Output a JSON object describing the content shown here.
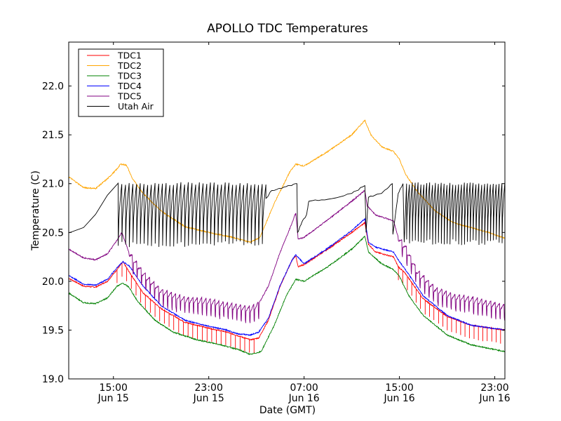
{
  "chart_data": {
    "type": "line",
    "title": "APOLLO TDC Temperatures",
    "xlabel": "Date (GMT)",
    "ylabel": "Temperature (C)",
    "x_units": "hours since Jun 15 00:00 GMT",
    "xlim": [
      11.25,
      47.85
    ],
    "ylim": [
      19.0,
      22.45
    ],
    "grid": false,
    "legend_position": "top-left",
    "yticks": [
      {
        "value": 19.0,
        "label": "19.0"
      },
      {
        "value": 19.5,
        "label": "19.5"
      },
      {
        "value": 20.0,
        "label": "20.0"
      },
      {
        "value": 20.5,
        "label": "20.5"
      },
      {
        "value": 21.0,
        "label": "21.0"
      },
      {
        "value": 21.5,
        "label": "21.5"
      },
      {
        "value": 22.0,
        "label": "22.0"
      }
    ],
    "xticks": [
      {
        "value": 15,
        "time": "15:00",
        "date": "Jun 15"
      },
      {
        "value": 23,
        "time": "23:00",
        "date": "Jun 15"
      },
      {
        "value": 31,
        "time": "07:00",
        "date": "Jun 16"
      },
      {
        "value": 39,
        "time": "15:00",
        "date": "Jun 16"
      },
      {
        "value": 47,
        "time": "23:00",
        "date": "Jun 16"
      }
    ],
    "series": [
      {
        "name": "TDC1",
        "color": "#ff0000",
        "points": [
          [
            11.25,
            20.03
          ],
          [
            12.5,
            19.95
          ],
          [
            13.5,
            19.94
          ],
          [
            14.5,
            20.0
          ],
          [
            15.3,
            20.12
          ],
          [
            15.8,
            20.2
          ],
          [
            16.3,
            20.1
          ],
          [
            17.5,
            19.88
          ],
          [
            19,
            19.72
          ],
          [
            21,
            19.58
          ],
          [
            23,
            19.52
          ],
          [
            24.5,
            19.48
          ],
          [
            25.5,
            19.44
          ],
          [
            26.5,
            19.4
          ],
          [
            27.2,
            19.42
          ],
          [
            28,
            19.6
          ],
          [
            29,
            19.95
          ],
          [
            30,
            20.22
          ],
          [
            30.3,
            20.26
          ],
          [
            30.5,
            20.15
          ],
          [
            31,
            20.17
          ],
          [
            33,
            20.33
          ],
          [
            35,
            20.5
          ],
          [
            36.1,
            20.6
          ],
          [
            36.4,
            20.38
          ],
          [
            37,
            20.3
          ],
          [
            38.5,
            20.25
          ],
          [
            38.9,
            20.15
          ],
          [
            39.5,
            20.08
          ],
          [
            41,
            19.82
          ],
          [
            43,
            19.64
          ],
          [
            45,
            19.55
          ],
          [
            47.85,
            19.5
          ]
        ],
        "spikes": {
          "start": 15.3,
          "end": 27.2,
          "count": 30,
          "depth": 0.14
        },
        "spikes2": {
          "start": 38.9,
          "end": 47.85,
          "count": 24,
          "depth": 0.14
        }
      },
      {
        "name": "TDC2",
        "color": "#ffa500",
        "points": [
          [
            11.25,
            21.07
          ],
          [
            12.5,
            20.96
          ],
          [
            13.5,
            20.95
          ],
          [
            14.5,
            21.05
          ],
          [
            15.3,
            21.15
          ],
          [
            15.6,
            21.2
          ],
          [
            16.1,
            21.19
          ],
          [
            16.6,
            21.05
          ],
          [
            17.5,
            20.9
          ],
          [
            19,
            20.72
          ],
          [
            21,
            20.56
          ],
          [
            23,
            20.5
          ],
          [
            25,
            20.45
          ],
          [
            26.5,
            20.4
          ],
          [
            27.3,
            20.45
          ],
          [
            28.5,
            20.8
          ],
          [
            29.8,
            21.12
          ],
          [
            30.3,
            21.2
          ],
          [
            31,
            21.18
          ],
          [
            33,
            21.33
          ],
          [
            35,
            21.5
          ],
          [
            36.1,
            21.65
          ],
          [
            36.6,
            21.5
          ],
          [
            37.5,
            21.38
          ],
          [
            38.5,
            21.33
          ],
          [
            39,
            21.25
          ],
          [
            39.5,
            21.1
          ],
          [
            40.5,
            20.92
          ],
          [
            42,
            20.72
          ],
          [
            43.5,
            20.6
          ],
          [
            45,
            20.55
          ],
          [
            46.5,
            20.5
          ],
          [
            47.85,
            20.44
          ]
        ]
      },
      {
        "name": "TDC3",
        "color": "#008000",
        "points": [
          [
            11.25,
            19.88
          ],
          [
            12.5,
            19.78
          ],
          [
            13.5,
            19.77
          ],
          [
            14.5,
            19.83
          ],
          [
            15.3,
            19.95
          ],
          [
            15.8,
            19.98
          ],
          [
            16.3,
            19.94
          ],
          [
            17,
            19.8
          ],
          [
            18.5,
            19.6
          ],
          [
            20,
            19.48
          ],
          [
            22,
            19.4
          ],
          [
            24,
            19.35
          ],
          [
            25.5,
            19.3
          ],
          [
            26.5,
            19.25
          ],
          [
            27.4,
            19.28
          ],
          [
            28.5,
            19.55
          ],
          [
            29.5,
            19.85
          ],
          [
            30.3,
            20.02
          ],
          [
            31,
            20.0
          ],
          [
            33,
            20.15
          ],
          [
            35,
            20.33
          ],
          [
            36.1,
            20.46
          ],
          [
            36.4,
            20.3
          ],
          [
            37.5,
            20.18
          ],
          [
            38.5,
            20.12
          ],
          [
            39,
            20.05
          ],
          [
            39.8,
            19.85
          ],
          [
            41,
            19.65
          ],
          [
            43,
            19.45
          ],
          [
            45,
            19.35
          ],
          [
            47.85,
            19.28
          ]
        ]
      },
      {
        "name": "TDC4",
        "color": "#0000ff",
        "points": [
          [
            11.25,
            20.06
          ],
          [
            12.5,
            19.97
          ],
          [
            13.5,
            19.96
          ],
          [
            14.5,
            20.02
          ],
          [
            15.3,
            20.14
          ],
          [
            15.8,
            20.2
          ],
          [
            16.3,
            20.16
          ],
          [
            17.5,
            19.95
          ],
          [
            19,
            19.75
          ],
          [
            21,
            19.6
          ],
          [
            23,
            19.54
          ],
          [
            24.5,
            19.5
          ],
          [
            25.5,
            19.46
          ],
          [
            26.5,
            19.45
          ],
          [
            27.2,
            19.48
          ],
          [
            28,
            19.62
          ],
          [
            29,
            19.96
          ],
          [
            30,
            20.22
          ],
          [
            30.3,
            20.27
          ],
          [
            31,
            20.18
          ],
          [
            33,
            20.34
          ],
          [
            35,
            20.52
          ],
          [
            36.1,
            20.64
          ],
          [
            36.4,
            20.4
          ],
          [
            37,
            20.35
          ],
          [
            38.5,
            20.3
          ],
          [
            38.9,
            20.22
          ],
          [
            39.5,
            20.12
          ],
          [
            41,
            19.85
          ],
          [
            43,
            19.65
          ],
          [
            45,
            19.55
          ],
          [
            47.85,
            19.5
          ]
        ]
      },
      {
        "name": "TDC5",
        "color": "#800080",
        "points": [
          [
            11.25,
            20.33
          ],
          [
            12.5,
            20.24
          ],
          [
            13.5,
            20.22
          ],
          [
            14.5,
            20.28
          ],
          [
            15.3,
            20.42
          ],
          [
            15.7,
            20.5
          ],
          [
            16.3,
            20.3
          ],
          [
            17.5,
            20.08
          ],
          [
            19,
            19.9
          ],
          [
            21,
            19.82
          ],
          [
            23,
            19.8
          ],
          [
            25,
            19.75
          ],
          [
            26.5,
            19.72
          ],
          [
            27.2,
            19.77
          ],
          [
            28,
            19.95
          ],
          [
            29,
            20.3
          ],
          [
            30,
            20.6
          ],
          [
            30.3,
            20.7
          ],
          [
            30.5,
            20.43
          ],
          [
            31,
            20.45
          ],
          [
            33,
            20.63
          ],
          [
            35,
            20.82
          ],
          [
            36.1,
            20.93
          ],
          [
            36.3,
            20.77
          ],
          [
            37,
            20.68
          ],
          [
            38.5,
            20.62
          ],
          [
            38.9,
            20.45
          ],
          [
            39.5,
            20.35
          ],
          [
            40.5,
            20.1
          ],
          [
            42,
            19.92
          ],
          [
            43.5,
            19.85
          ],
          [
            45,
            19.82
          ],
          [
            47.85,
            19.74
          ]
        ],
        "sawtooth": [
          {
            "start": 16.3,
            "end": 27.2,
            "count": 30,
            "amp": 0.04
          },
          {
            "start": 38.9,
            "end": 47.85,
            "count": 24,
            "amp": 0.04
          }
        ]
      },
      {
        "name": "Utah Air",
        "color": "#000000",
        "points": [
          [
            11.25,
            20.49
          ],
          [
            12.5,
            20.55
          ],
          [
            13.5,
            20.68
          ],
          [
            14.5,
            20.88
          ],
          [
            15.4,
            21.0
          ]
        ],
        "cycles": [
          {
            "start": 15.4,
            "end": 27.8,
            "count": 40,
            "high": 21.0,
            "low": 20.38
          },
          {
            "start": 39.6,
            "end": 47.85,
            "count": 34,
            "high": 21.0,
            "low": 20.4
          }
        ],
        "points_mid": [
          [
            27.8,
            20.85
          ],
          [
            28.3,
            20.93
          ],
          [
            29.5,
            20.97
          ],
          [
            30.4,
            21.0
          ],
          [
            30.45,
            20.5
          ],
          [
            30.8,
            20.6
          ],
          [
            31.2,
            20.68
          ],
          [
            31.4,
            20.82
          ],
          [
            33,
            20.84
          ],
          [
            35,
            20.9
          ],
          [
            36.1,
            20.98
          ],
          [
            36.2,
            20.5
          ],
          [
            36.4,
            20.86
          ],
          [
            37.5,
            20.9
          ],
          [
            38.4,
            21.0
          ],
          [
            38.45,
            20.48
          ],
          [
            38.9,
            20.9
          ],
          [
            39.3,
            21.0
          ],
          [
            39.4,
            20.4
          ],
          [
            39.6,
            21.0
          ]
        ]
      }
    ]
  }
}
